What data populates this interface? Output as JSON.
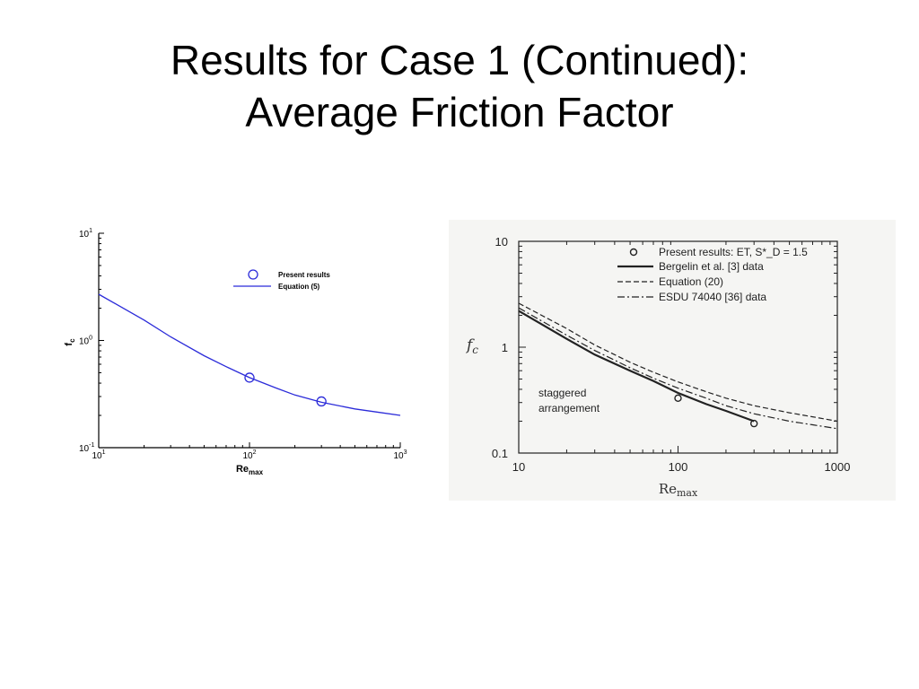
{
  "slide": {
    "title_line1": "Results for Case 1 (Continued):",
    "title_line2": "Average Friction Factor"
  },
  "chart_data": [
    {
      "type": "line",
      "xscale": "log",
      "yscale": "log",
      "xlim": [
        10,
        1000
      ],
      "ylim": [
        0.1,
        10
      ],
      "xlabel": "Re",
      "xlabel_sub": "max",
      "ylabel": "f",
      "ylabel_sub": "c",
      "xtick_labels": [
        {
          "value": 10,
          "base": "10",
          "exp": "1"
        },
        {
          "value": 100,
          "base": "10",
          "exp": "2"
        },
        {
          "value": 1000,
          "base": "10",
          "exp": "3"
        }
      ],
      "ytick_labels": [
        {
          "value": 0.1,
          "base": "10",
          "exp": "-1"
        },
        {
          "value": 1,
          "base": "10",
          "exp": "0"
        },
        {
          "value": 10,
          "base": "10",
          "exp": "1"
        }
      ],
      "legend_position": "top-right",
      "color": "#2b2bd9",
      "series": [
        {
          "name": "Present results",
          "kind": "marker",
          "x": [
            100,
            300
          ],
          "y": [
            0.45,
            0.27
          ]
        },
        {
          "name": "Equation (5)",
          "kind": "line",
          "x": [
            10,
            20,
            30,
            50,
            70,
            100,
            150,
            200,
            300,
            500,
            700,
            1000
          ],
          "y": [
            2.7,
            1.55,
            1.08,
            0.72,
            0.57,
            0.45,
            0.36,
            0.31,
            0.265,
            0.23,
            0.215,
            0.2
          ]
        }
      ]
    },
    {
      "type": "line",
      "xscale": "log",
      "yscale": "log",
      "xlim": [
        10,
        1000
      ],
      "ylim": [
        0.1,
        10
      ],
      "xlabel": "Re",
      "xlabel_sub": "max",
      "ylabel": "f",
      "ylabel_sub": "c",
      "xtick_labels": [
        {
          "value": 10,
          "text": "10"
        },
        {
          "value": 100,
          "text": "100"
        },
        {
          "value": 1000,
          "text": "1000"
        }
      ],
      "ytick_labels": [
        {
          "value": 0.1,
          "text": "0.1"
        },
        {
          "value": 1,
          "text": "1"
        },
        {
          "value": 10,
          "text": "10"
        }
      ],
      "annotation": [
        "staggered",
        "arrangement"
      ],
      "legend_position": "top-right",
      "series": [
        {
          "name": "Present results: ET, S*_D = 1.5",
          "kind": "marker",
          "x": [
            100,
            300
          ],
          "y": [
            0.33,
            0.19
          ]
        },
        {
          "name": "Bergelin et al. [3] data",
          "kind": "solid",
          "x": [
            10,
            20,
            30,
            50,
            70,
            100,
            150,
            200,
            300
          ],
          "y": [
            2.2,
            1.2,
            0.85,
            0.6,
            0.48,
            0.37,
            0.29,
            0.25,
            0.2
          ]
        },
        {
          "name": "Equation (20)",
          "kind": "dashed",
          "x": [
            10,
            20,
            30,
            50,
            70,
            100,
            150,
            200,
            300,
            500,
            700,
            1000
          ],
          "y": [
            2.6,
            1.5,
            1.05,
            0.72,
            0.58,
            0.47,
            0.38,
            0.33,
            0.28,
            0.24,
            0.22,
            0.2
          ]
        },
        {
          "name": "ESDU 74040 [36] data",
          "kind": "dashdot",
          "x": [
            10,
            20,
            30,
            50,
            70,
            100,
            150,
            200,
            300,
            500,
            700,
            1000
          ],
          "y": [
            2.35,
            1.3,
            0.93,
            0.64,
            0.51,
            0.41,
            0.33,
            0.28,
            0.235,
            0.2,
            0.185,
            0.17
          ]
        }
      ]
    }
  ]
}
